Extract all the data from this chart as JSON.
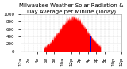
{
  "title": "Milwaukee Weather Solar Radiation & Day Average per Minute (Today)",
  "background_color": "#ffffff",
  "plot_bg_color": "#ffffff",
  "grid_color": "#cccccc",
  "ylim": [
    0,
    1000
  ],
  "xlim": [
    0,
    1440
  ],
  "ylabel_ticks": [
    0,
    200,
    400,
    600,
    800,
    1000
  ],
  "x_tick_positions": [
    0,
    60,
    120,
    180,
    240,
    300,
    360,
    420,
    480,
    540,
    600,
    660,
    720,
    780,
    840,
    900,
    960,
    1020,
    1080,
    1140,
    1200,
    1260,
    1320,
    1380,
    1440
  ],
  "solar_color": "#ff0000",
  "avg_color": "#0000cc",
  "title_fontsize": 5,
  "tick_fontsize": 4
}
